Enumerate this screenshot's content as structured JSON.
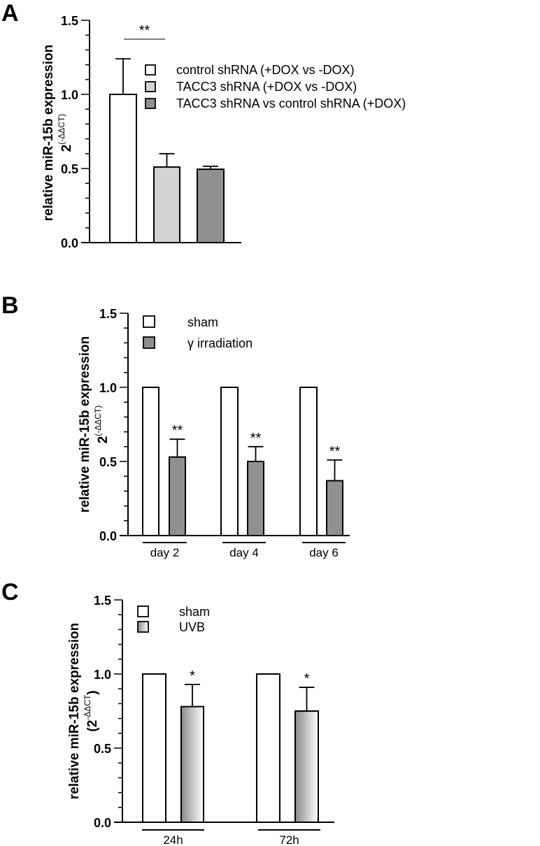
{
  "chart_data": [
    {
      "panel_label": "A",
      "type": "bar",
      "ylim": [
        0,
        1.5
      ],
      "yticks": [
        "0.0",
        "0.5",
        "1.0",
        "1.5"
      ],
      "ylabel": "relative miR-15b expression",
      "ylabel_sub": {
        "pre": "",
        "base": "2",
        "sup": "(-ΔΔCT)",
        "post": ""
      },
      "legend_placement": "top-right",
      "series": [
        {
          "name": "control shRNA (+DOX vs -DOX)",
          "color": "#ffffff",
          "values": [
            1.0
          ],
          "errors": [
            0.24
          ]
        },
        {
          "name": "TACC3 shRNA (+DOX vs -DOX)",
          "color": "#d3d3d3",
          "values": [
            0.51
          ],
          "errors": [
            0.09
          ]
        },
        {
          "name": "TACC3 shRNA vs control shRNA (+DOX)",
          "color": "#909090",
          "values": [
            0.495
          ],
          "errors": [
            0.02
          ]
        }
      ],
      "significance": {
        "between": [
          0,
          1
        ],
        "label": "**"
      }
    },
    {
      "panel_label": "B",
      "type": "bar",
      "ylim": [
        0,
        1.5
      ],
      "yticks": [
        "0.0",
        "0.5",
        "1.0",
        "1.5"
      ],
      "ylabel": "relative miR-15b expression",
      "ylabel_sub": {
        "pre": "",
        "base": "2",
        "sup": "(-ΔΔCT)",
        "post": ""
      },
      "legend_placement": "top-left",
      "categories": [
        "day 2",
        "day 4",
        "day 6"
      ],
      "series": [
        {
          "name": "sham",
          "color": "#ffffff",
          "values": [
            1.0,
            1.0,
            1.0
          ],
          "errors": [
            0,
            0,
            0
          ],
          "stars": [
            "",
            "",
            ""
          ]
        },
        {
          "name": "γ irradiation",
          "color": "#909090",
          "values": [
            0.53,
            0.5,
            0.37
          ],
          "errors": [
            0.12,
            0.1,
            0.14
          ],
          "stars": [
            "**",
            "**",
            "**"
          ]
        }
      ]
    },
    {
      "panel_label": "C",
      "type": "bar",
      "ylim": [
        0,
        1.5
      ],
      "yticks": [
        "0.0",
        "0.5",
        "1.0",
        "1.5"
      ],
      "ylabel": "relative miR-15b expression",
      "ylabel_sub": {
        "pre": "(",
        "base": "2",
        "sup": "-ΔΔCT",
        "post": ")"
      },
      "legend_placement": "top-left",
      "categories": [
        "24h",
        "72h"
      ],
      "series": [
        {
          "name": "sham",
          "color": "#ffffff",
          "values": [
            1.0,
            1.0
          ],
          "errors": [
            0,
            0
          ],
          "stars": [
            "",
            ""
          ]
        },
        {
          "name": "UVB",
          "color": "gradient-gray",
          "values": [
            0.78,
            0.75
          ],
          "errors": [
            0.15,
            0.16
          ],
          "stars": [
            "*",
            "*"
          ]
        }
      ]
    }
  ]
}
